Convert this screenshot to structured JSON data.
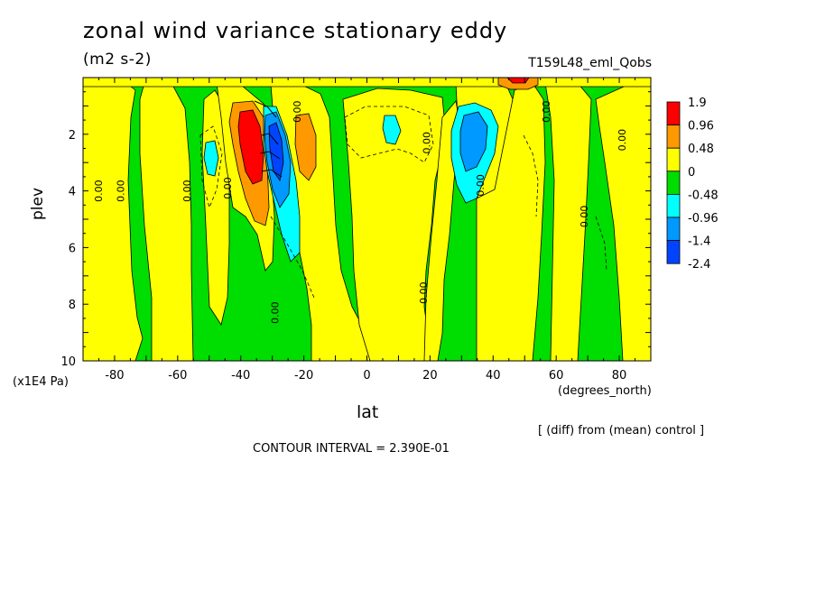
{
  "header": {
    "title": "zonal wind variance stationary eddy",
    "units": "(m2 s-2)",
    "run_name": "T159L48_eml_Qobs"
  },
  "footer": {
    "y_multiplier": "(x1E4 Pa)",
    "x_units": "(degrees_north)",
    "comparison_note": "[ (diff) from (mean) control ]",
    "contour_interval": "CONTOUR INTERVAL = 2.390E-01"
  },
  "chart_data": {
    "type": "heatmap",
    "title": "zonal wind variance stationary eddy",
    "xlabel": "lat",
    "ylabel": "plev",
    "xlim": [
      -90,
      90
    ],
    "ylim": [
      0,
      10
    ],
    "y_reversed": true,
    "x_ticks": [
      -80,
      -60,
      -40,
      -20,
      0,
      20,
      40,
      60,
      80
    ],
    "y_ticks": [
      2,
      4,
      6,
      8,
      10
    ],
    "legend": {
      "position": "right",
      "levels": [
        "1.9",
        "0.96",
        "0.48",
        "0",
        "-0.48",
        "-0.96",
        "-1.4",
        "-2.4"
      ],
      "colors": [
        "#ff0000",
        "#ff9900",
        "#ffff00",
        "#00dd00",
        "#00ffff",
        "#0099ff",
        "#0044ff"
      ]
    },
    "contour_labels": [
      {
        "lat": -84,
        "plev": 4.0,
        "text": "0.00"
      },
      {
        "lat": -77,
        "plev": 4.0,
        "text": "0.00"
      },
      {
        "lat": -56,
        "plev": 4.0,
        "text": "0.00"
      },
      {
        "lat": -43,
        "plev": 3.9,
        "text": "0.00"
      },
      {
        "lat": -28,
        "plev": 8.3,
        "text": "0.00"
      },
      {
        "lat": -21,
        "plev": 1.2,
        "text": "0.00"
      },
      {
        "lat": 20,
        "plev": 2.3,
        "text": "0.00"
      },
      {
        "lat": 19,
        "plev": 7.6,
        "text": "0.00"
      },
      {
        "lat": 37,
        "plev": 3.8,
        "text": "0.00"
      },
      {
        "lat": 58,
        "plev": 1.2,
        "text": "0.00"
      },
      {
        "lat": 70,
        "plev": 4.9,
        "text": "0.00"
      },
      {
        "lat": 82,
        "plev": 2.2,
        "text": "0.00"
      }
    ],
    "features": [
      {
        "name": "positive-max-south",
        "lat": -38,
        "plev": 2.8,
        "value": 1.9
      },
      {
        "name": "negative-min-south",
        "lat": -31,
        "plev": 3.2,
        "value": -2.4
      },
      {
        "name": "negative-min-north",
        "lat": 33,
        "plev": 3.0,
        "value": -1.4
      },
      {
        "name": "positive-cap-north",
        "lat": 51,
        "plev": 0.1,
        "value": 0.96
      }
    ]
  }
}
